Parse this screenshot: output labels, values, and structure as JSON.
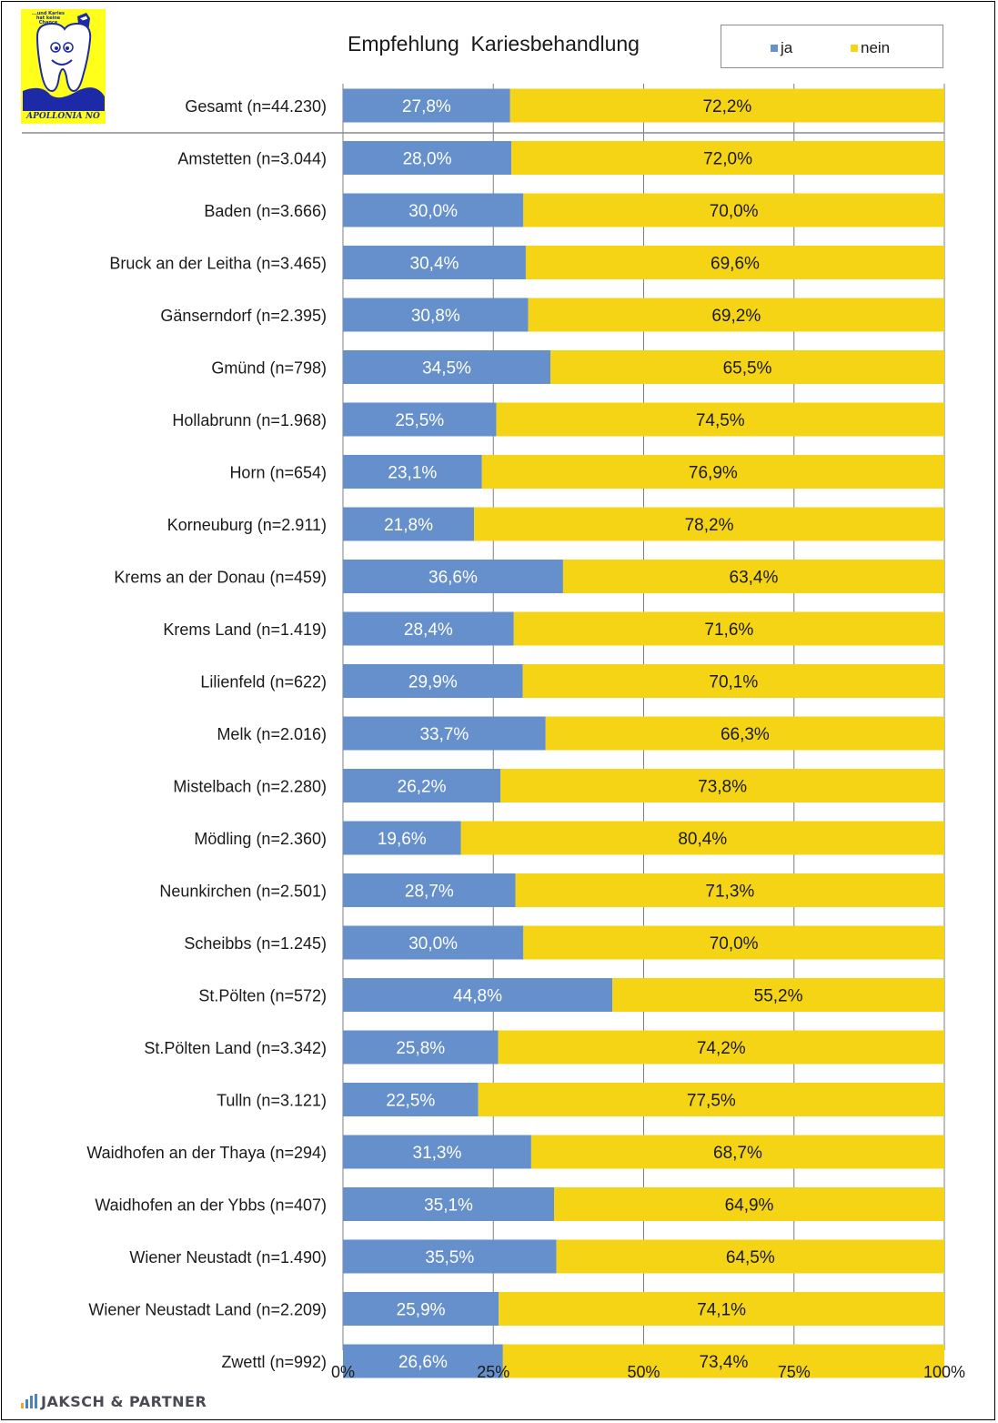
{
  "logo": {
    "top_text": "...und Karies hat keine Chance",
    "bottom_text": "APOLLONIA NÖ"
  },
  "footer": {
    "brand": "JAKSCH & PARTNER"
  },
  "colors": {
    "ja": "#6590cc",
    "nein": "#f5d416"
  },
  "chart_data": {
    "type": "bar",
    "orientation": "horizontal",
    "stacked": true,
    "percent_stacked": true,
    "title": "Empfehlung  Kariesbehandlung",
    "legend": [
      "ja",
      "nein"
    ],
    "legend_placement": "top-right",
    "grid": true,
    "xlim": [
      0,
      100
    ],
    "x_ticks": [
      "0%",
      "25%",
      "50%",
      "75%",
      "100%"
    ],
    "categories": [
      "Gesamt (n=44.230)",
      "Amstetten (n=3.044)",
      "Baden (n=3.666)",
      "Bruck an der Leitha (n=3.465)",
      "Gänserndorf (n=2.395)",
      "Gmünd (n=798)",
      "Hollabrunn (n=1.968)",
      "Horn (n=654)",
      "Korneuburg (n=2.911)",
      "Krems an der Donau (n=459)",
      "Krems Land (n=1.419)",
      "Lilienfeld (n=622)",
      "Melk (n=2.016)",
      "Mistelbach (n=2.280)",
      "Mödling (n=2.360)",
      "Neunkirchen (n=2.501)",
      "Scheibbs (n=1.245)",
      "St.Pölten (n=572)",
      "St.Pölten Land (n=3.342)",
      "Tulln (n=3.121)",
      "Waidhofen an der Thaya (n=294)",
      "Waidhofen an der Ybbs (n=407)",
      "Wiener Neustadt (n=1.490)",
      "Wiener Neustadt Land (n=2.209)",
      "Zwettl (n=992)"
    ],
    "series": [
      {
        "name": "ja",
        "values": [
          27.8,
          28.0,
          30.0,
          30.4,
          30.8,
          34.5,
          25.5,
          23.1,
          21.8,
          36.6,
          28.4,
          29.9,
          33.7,
          26.2,
          19.6,
          28.7,
          30.0,
          44.8,
          25.8,
          22.5,
          31.3,
          35.1,
          35.5,
          25.9,
          26.6
        ],
        "labels": [
          "27,8%",
          "28,0%",
          "30,0%",
          "30,4%",
          "30,8%",
          "34,5%",
          "25,5%",
          "23,1%",
          "21,8%",
          "36,6%",
          "28,4%",
          "29,9%",
          "33,7%",
          "26,2%",
          "19,6%",
          "28,7%",
          "30,0%",
          "44,8%",
          "25,8%",
          "22,5%",
          "31,3%",
          "35,1%",
          "35,5%",
          "25,9%",
          "26,6%"
        ]
      },
      {
        "name": "nein",
        "values": [
          72.2,
          72.0,
          70.0,
          69.6,
          69.2,
          65.5,
          74.5,
          76.9,
          78.2,
          63.4,
          71.6,
          70.1,
          66.3,
          73.8,
          80.4,
          71.3,
          70.0,
          55.2,
          74.2,
          77.5,
          68.7,
          64.9,
          64.5,
          74.1,
          73.4
        ],
        "labels": [
          "72,2%",
          "72,0%",
          "70,0%",
          "69,6%",
          "69,2%",
          "65,5%",
          "74,5%",
          "76,9%",
          "78,2%",
          "63,4%",
          "71,6%",
          "70,1%",
          "66,3%",
          "73,8%",
          "80,4%",
          "71,3%",
          "70,0%",
          "55,2%",
          "74,2%",
          "77,5%",
          "68,7%",
          "64,9%",
          "64,5%",
          "74,1%",
          "73,4%"
        ]
      }
    ]
  }
}
